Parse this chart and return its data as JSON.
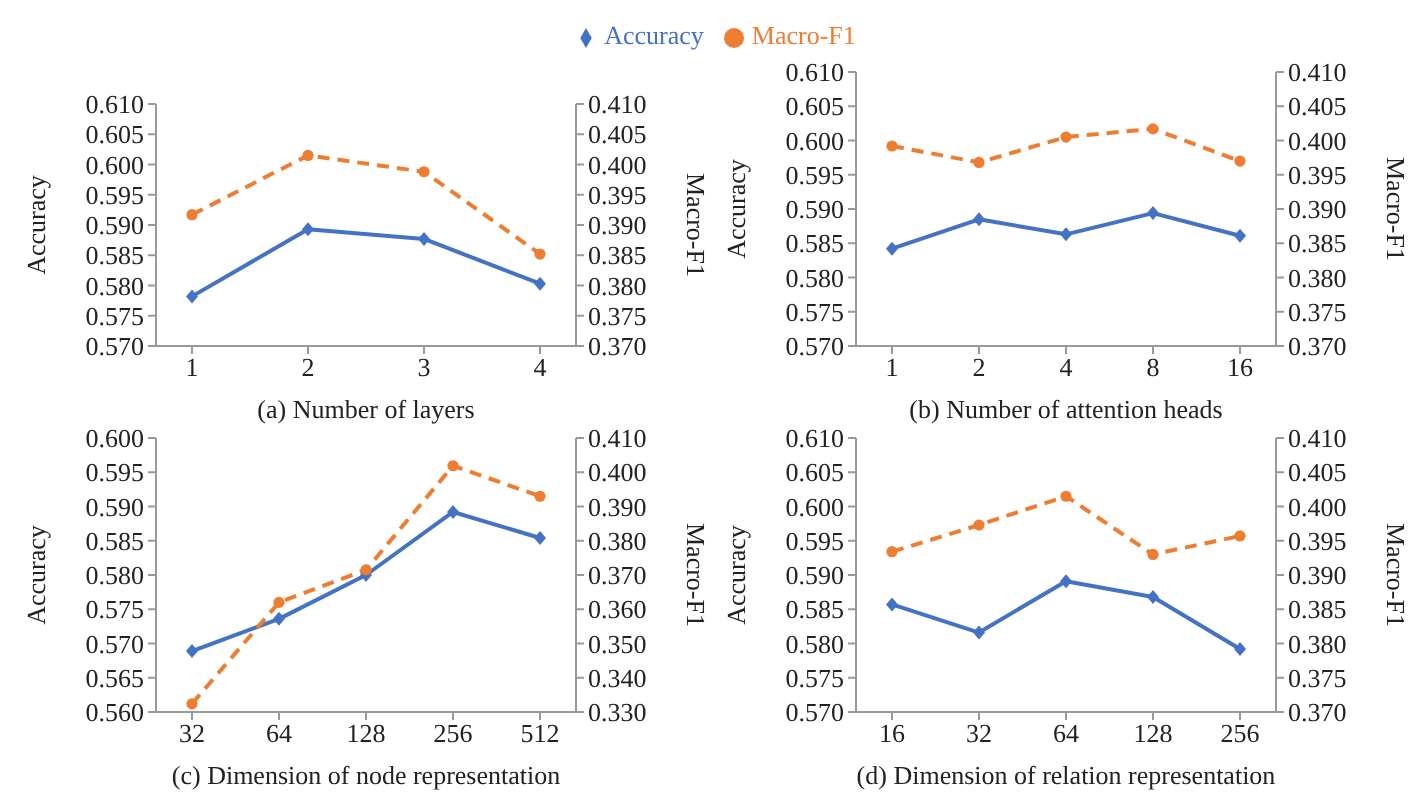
{
  "chart_data": [
    {
      "type": "line",
      "xlabel": "(a) Number of layers",
      "ylabel": "Accuracy",
      "y2label": "Macro-F1",
      "categories": [
        "1",
        "2",
        "3",
        "4"
      ],
      "legend": "top",
      "series": [
        {
          "name": "Accuracy",
          "color": "#4472c4",
          "marker": "diamond",
          "line_style": "solid",
          "values": [
            0.5782,
            0.5893,
            0.5877,
            0.5803
          ]
        },
        {
          "name": "Macro-F1",
          "color": "#ed7d31",
          "marker": "circle",
          "line_style": "dashed",
          "axis": "y2",
          "values": [
            0.3917,
            0.4015,
            0.3988,
            0.3852
          ]
        }
      ],
      "ylim": [
        0.57,
        0.61
      ],
      "yticks": [
        {
          "value": 0.57,
          "label": "0.570"
        },
        {
          "value": 0.575,
          "label": "0.575"
        },
        {
          "value": 0.58,
          "label": "0.580"
        },
        {
          "value": 0.585,
          "label": "0.585"
        },
        {
          "value": 0.59,
          "label": "0.590"
        },
        {
          "value": 0.595,
          "label": "0.595"
        },
        {
          "value": 0.6,
          "label": "0.600"
        },
        {
          "value": 0.605,
          "label": "0.605"
        },
        {
          "value": 0.61,
          "label": "0.610"
        }
      ],
      "y2lim": [
        0.37,
        0.41
      ],
      "y2ticks": [
        {
          "value": 0.37,
          "label": "0.370"
        },
        {
          "value": 0.375,
          "label": "0.375"
        },
        {
          "value": 0.38,
          "label": "0.380"
        },
        {
          "value": 0.385,
          "label": "0.385"
        },
        {
          "value": 0.39,
          "label": "0.390"
        },
        {
          "value": 0.395,
          "label": "0.395"
        },
        {
          "value": 0.4,
          "label": "0.400"
        },
        {
          "value": 0.405,
          "label": "0.405"
        },
        {
          "value": 0.41,
          "label": "0.410"
        }
      ]
    },
    {
      "type": "line",
      "xlabel": "(b) Number of attention heads",
      "ylabel": "Accuracy",
      "y2label": "Macro-F1",
      "categories": [
        "1",
        "2",
        "4",
        "8",
        "16"
      ],
      "series": [
        {
          "color": "#4472c4",
          "marker": "diamond",
          "line_style": "solid",
          "values": [
            0.5842,
            0.5885,
            0.5863,
            0.5894,
            0.5861
          ]
        },
        {
          "color": "#ed7d31",
          "marker": "circle",
          "line_style": "dashed",
          "axis": "y2",
          "values": [
            0.3992,
            0.3968,
            0.4005,
            0.4017,
            0.397
          ]
        }
      ],
      "ylim": [
        0.57,
        0.61
      ],
      "yticks": [
        {
          "value": 0.57,
          "label": "0.570"
        },
        {
          "value": 0.575,
          "label": "0.575"
        },
        {
          "value": 0.58,
          "label": "0.580"
        },
        {
          "value": 0.585,
          "label": "0.585"
        },
        {
          "value": 0.59,
          "label": "0.590"
        },
        {
          "value": 0.595,
          "label": "0.595"
        },
        {
          "value": 0.6,
          "label": "0.600"
        },
        {
          "value": 0.605,
          "label": "0.605"
        },
        {
          "value": 0.61,
          "label": "0.610"
        }
      ],
      "y2lim": [
        0.37,
        0.41
      ],
      "y2ticks": [
        {
          "value": 0.37,
          "label": "0.370"
        },
        {
          "value": 0.375,
          "label": "0.375"
        },
        {
          "value": 0.38,
          "label": "0.380"
        },
        {
          "value": 0.385,
          "label": "0.385"
        },
        {
          "value": 0.39,
          "label": "0.390"
        },
        {
          "value": 0.395,
          "label": "0.395"
        },
        {
          "value": 0.4,
          "label": "0.400"
        },
        {
          "value": 0.405,
          "label": "0.405"
        },
        {
          "value": 0.41,
          "label": "0.410"
        }
      ]
    },
    {
      "type": "line",
      "xlabel": "(c) Dimension of node representation",
      "ylabel": "Accuracy",
      "y2label": "Macro-F1",
      "categories": [
        "32",
        "64",
        "128",
        "256",
        "512"
      ],
      "series": [
        {
          "color": "#4472c4",
          "marker": "diamond",
          "line_style": "solid",
          "values": [
            0.5689,
            0.5736,
            0.58,
            0.5892,
            0.5854
          ]
        },
        {
          "color": "#ed7d31",
          "marker": "circle",
          "line_style": "dashed",
          "axis": "y2",
          "values": [
            0.3324,
            0.362,
            0.3715,
            0.4019,
            0.393
          ]
        }
      ],
      "ylim": [
        0.56,
        0.6
      ],
      "yticks": [
        {
          "value": 0.56,
          "label": "0.560"
        },
        {
          "value": 0.565,
          "label": "0.565"
        },
        {
          "value": 0.57,
          "label": "0.570"
        },
        {
          "value": 0.575,
          "label": "0.575"
        },
        {
          "value": 0.58,
          "label": "0.580"
        },
        {
          "value": 0.585,
          "label": "0.585"
        },
        {
          "value": 0.59,
          "label": "0.590"
        },
        {
          "value": 0.595,
          "label": "0.595"
        },
        {
          "value": 0.6,
          "label": "0.600"
        }
      ],
      "y2lim": [
        0.33,
        0.41
      ],
      "y2ticks": [
        {
          "value": 0.33,
          "label": "0.330"
        },
        {
          "value": 0.34,
          "label": "0.340"
        },
        {
          "value": 0.35,
          "label": "0.350"
        },
        {
          "value": 0.36,
          "label": "0.360"
        },
        {
          "value": 0.37,
          "label": "0.370"
        },
        {
          "value": 0.38,
          "label": "0.380"
        },
        {
          "value": 0.39,
          "label": "0.390"
        },
        {
          "value": 0.4,
          "label": "0.400"
        },
        {
          "value": 0.41,
          "label": "0.410"
        }
      ]
    },
    {
      "type": "line",
      "xlabel": "(d) Dimension of relation representation",
      "ylabel": "Accuracy",
      "y2label": "Macro-F1",
      "categories": [
        "16",
        "32",
        "64",
        "128",
        "256"
      ],
      "series": [
        {
          "color": "#4472c4",
          "marker": "diamond",
          "line_style": "solid",
          "values": [
            0.5857,
            0.5816,
            0.5891,
            0.5868,
            0.5792
          ]
        },
        {
          "color": "#ed7d31",
          "marker": "circle",
          "line_style": "dashed",
          "axis": "y2",
          "values": [
            0.3934,
            0.3973,
            0.4015,
            0.393,
            0.3957
          ]
        }
      ],
      "ylim": [
        0.57,
        0.61
      ],
      "yticks": [
        {
          "value": 0.57,
          "label": "0.570"
        },
        {
          "value": 0.575,
          "label": "0.575"
        },
        {
          "value": 0.58,
          "label": "0.580"
        },
        {
          "value": 0.585,
          "label": "0.585"
        },
        {
          "value": 0.59,
          "label": "0.590"
        },
        {
          "value": 0.595,
          "label": "0.595"
        },
        {
          "value": 0.6,
          "label": "0.600"
        },
        {
          "value": 0.605,
          "label": "0.605"
        },
        {
          "value": 0.61,
          "label": "0.610"
        }
      ],
      "y2lim": [
        0.37,
        0.41
      ],
      "y2ticks": [
        {
          "value": 0.37,
          "label": "0.370"
        },
        {
          "value": 0.375,
          "label": "0.375"
        },
        {
          "value": 0.38,
          "label": "0.380"
        },
        {
          "value": 0.385,
          "label": "0.385"
        },
        {
          "value": 0.39,
          "label": "0.390"
        },
        {
          "value": 0.395,
          "label": "0.395"
        },
        {
          "value": 0.4,
          "label": "0.400"
        },
        {
          "value": 0.405,
          "label": "0.405"
        },
        {
          "value": 0.41,
          "label": "0.410"
        }
      ]
    }
  ]
}
